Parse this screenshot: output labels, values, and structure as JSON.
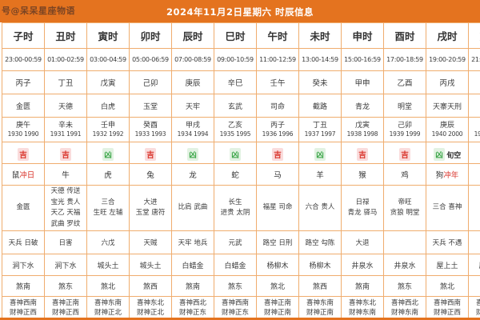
{
  "watermark": "号@呆呆星座物语",
  "title": "2024年11月2日星期六 时辰信息",
  "colors": {
    "bar": "#e4731f",
    "border": "#f0ad6e",
    "wm": "#7b4423",
    "ji": "#d9342b",
    "ji_bg": "#fadcdc",
    "xiong": "#3fa84c",
    "xiong_bg": "#e2f2e2",
    "red": "#d9342b"
  },
  "columns": [
    {
      "hour": "子时",
      "time": "23:00-00:59",
      "ganzhi": "丙子",
      "star": "金匮",
      "year_ganzhi": "庚午",
      "years": "1930 1990",
      "luck": "吉",
      "luck_extra": "",
      "zodiac": "鼠",
      "zodiac_extra": "冲日",
      "auspicious": "金匮",
      "inauspicious": "天兵 日破",
      "nayin": "涧下水",
      "sha": "煞南",
      "directions": "喜神西南\n财神正西"
    },
    {
      "hour": "丑时",
      "time": "01:00-02:59",
      "ganzhi": "丁丑",
      "star": "天德",
      "year_ganzhi": "辛未",
      "years": "1931 1991",
      "luck": "吉",
      "luck_extra": "",
      "zodiac": "牛",
      "zodiac_extra": "",
      "auspicious": "天德 传送\n宝光 贵人\n天乙 天福\n武曲 罗纹",
      "inauspicious": "日害",
      "nayin": "涧下水",
      "sha": "煞东",
      "directions": "喜神正南\n财神正西"
    },
    {
      "hour": "寅时",
      "time": "03:00-04:59",
      "ganzhi": "戊寅",
      "star": "白虎",
      "year_ganzhi": "壬申",
      "years": "1932 1992",
      "luck": "凶",
      "luck_extra": "",
      "zodiac": "虎",
      "zodiac_extra": "",
      "auspicious": "三合\n生旺 左辅",
      "inauspicious": "六戊",
      "nayin": "城头土",
      "sha": "煞北",
      "directions": "喜神东南\n财神正北"
    },
    {
      "hour": "卯时",
      "time": "05:00-06:59",
      "ganzhi": "己卯",
      "star": "玉堂",
      "year_ganzhi": "癸酉",
      "years": "1933 1993",
      "luck": "吉",
      "luck_extra": "",
      "zodiac": "兔",
      "zodiac_extra": "",
      "auspicious": "大进\n玉堂 唐符",
      "inauspicious": "天贼",
      "nayin": "城头土",
      "sha": "煞西",
      "directions": "喜神东北\n财神正北"
    },
    {
      "hour": "辰时",
      "time": "07:00-08:59",
      "ganzhi": "庚辰",
      "star": "天牢",
      "year_ganzhi": "甲戌",
      "years": "1934 1994",
      "luck": "凶",
      "luck_extra": "",
      "zodiac": "龙",
      "zodiac_extra": "",
      "auspicious": "比肩 武曲",
      "inauspicious": "天牢 地兵",
      "nayin": "白蜡金",
      "sha": "煞南",
      "directions": "喜神西北\n财神正东"
    },
    {
      "hour": "巳时",
      "time": "09:00-10:59",
      "ganzhi": "辛巳",
      "star": "玄武",
      "year_ganzhi": "乙亥",
      "years": "1935 1995",
      "luck": "凶",
      "luck_extra": "",
      "zodiac": "蛇",
      "zodiac_extra": "",
      "auspicious": "长生\n进贵 太阴",
      "inauspicious": "元武",
      "nayin": "白蜡金",
      "sha": "煞东",
      "directions": "喜神西南\n财神正东"
    },
    {
      "hour": "午时",
      "time": "11:00-12:59",
      "ganzhi": "壬午",
      "star": "司命",
      "year_ganzhi": "丙子",
      "years": "1936 1996",
      "luck": "吉",
      "luck_extra": "",
      "zodiac": "马",
      "zodiac_extra": "",
      "auspicious": "福星 司命",
      "inauspicious": "路空 日刑",
      "nayin": "杨柳木",
      "sha": "煞北",
      "directions": "喜神正南\n财神正南"
    },
    {
      "hour": "未时",
      "time": "13:00-14:59",
      "ganzhi": "癸未",
      "star": "截路",
      "year_ganzhi": "丁丑",
      "years": "1937 1997",
      "luck": "凶",
      "luck_extra": "",
      "zodiac": "羊",
      "zodiac_extra": "",
      "auspicious": "六合 贵人",
      "inauspicious": "路空 勾陈",
      "nayin": "杨柳木",
      "sha": "煞西",
      "directions": "喜神东南\n财神正南"
    },
    {
      "hour": "申时",
      "time": "15:00-16:59",
      "ganzhi": "甲申",
      "star": "青龙",
      "year_ganzhi": "戊寅",
      "years": "1938 1998",
      "luck": "吉",
      "luck_extra": "",
      "zodiac": "猴",
      "zodiac_extra": "",
      "auspicious": "日禄\n青龙 驿马",
      "inauspicious": "大退",
      "nayin": "井泉水",
      "sha": "煞南",
      "directions": "喜神东北\n财神东南"
    },
    {
      "hour": "酉时",
      "time": "17:00-18:59",
      "ganzhi": "乙酉",
      "star": "明堂",
      "year_ganzhi": "己卯",
      "years": "1939 1999",
      "luck": "吉",
      "luck_extra": "",
      "zodiac": "鸡",
      "zodiac_extra": "",
      "auspicious": "帝旺\n贪狼 明堂",
      "inauspicious": "",
      "nayin": "井泉水",
      "sha": "煞东",
      "directions": "喜神西北\n财神东南"
    },
    {
      "hour": "戌时",
      "time": "19:00-20:59",
      "ganzhi": "丙戌",
      "star": "天寨天刑",
      "year_ganzhi": "庚辰",
      "years": "1940 2000",
      "luck": "凶",
      "luck_extra": "旬空",
      "zodiac": "狗",
      "zodiac_extra": "冲年",
      "auspicious": "三合 喜神",
      "inauspicious": "天兵 不遇",
      "nayin": "屋上土",
      "sha": "煞北",
      "directions": "喜神西南\n财神正西"
    },
    {
      "hour": "亥时",
      "time": "21:00-22:59",
      "ganzhi": "丁亥",
      "star": "朱雀",
      "year_ganzhi": "辛巳",
      "years": "1941 2001",
      "luck": "凶",
      "luck_extra": "",
      "zodiac": "猪",
      "zodiac_extra": "",
      "auspicious": "天德",
      "inauspicious": "旬空",
      "nayin": "屋上土",
      "sha": "煞西",
      "directions": "喜神正南\n财神正西"
    }
  ]
}
